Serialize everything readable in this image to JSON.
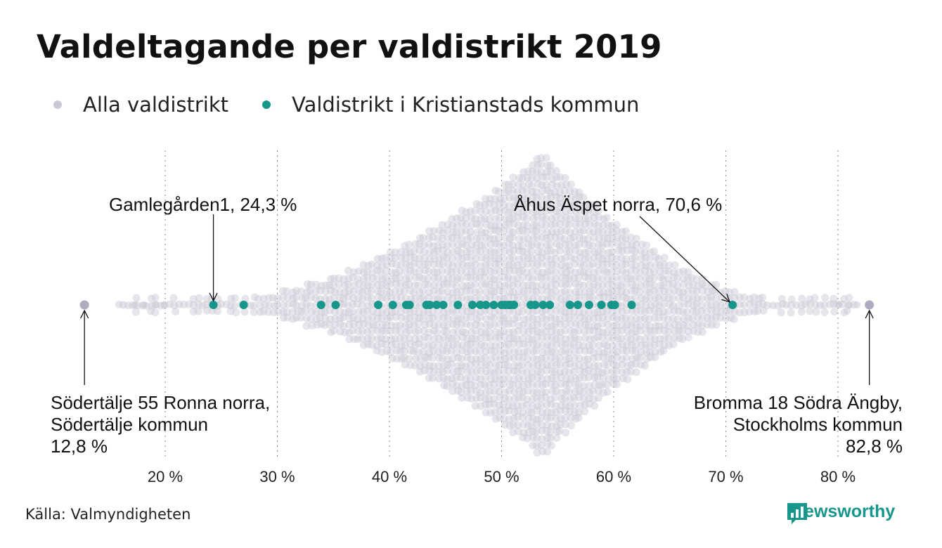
{
  "title": "Valdeltagande per valdistrikt 2019",
  "legend": {
    "all_label": "Alla valdistrikt",
    "kristianstad_label": "Valdistrikt i Kristianstads kommun"
  },
  "colors": {
    "all": "#c9c8d4",
    "kristianstad": "#17968b"
  },
  "source": "Källa: Valmyndigheten",
  "brand": "Newsworthy",
  "annotations": [
    {
      "lines": [
        "Gamlegården1, 24,3 %"
      ],
      "value": 24.3
    },
    {
      "lines": [
        "Åhus Äspet norra, 70,6 %"
      ],
      "value": 70.6
    },
    {
      "lines": [
        "Södertälje 55 Ronna norra,",
        "Södertälje kommun",
        "12,8 %"
      ],
      "value": 12.8
    },
    {
      "lines": [
        "Bromma 18 Södra Ängby,",
        "Stockholms kommun",
        "82,8 %"
      ],
      "value": 82.8
    }
  ],
  "chart_data": {
    "type": "scatter",
    "xlim": [
      10,
      90
    ],
    "x_ticks": [
      20,
      30,
      40,
      50,
      60,
      70,
      80
    ],
    "x_tick_labels": [
      "20 %",
      "30 %",
      "40 %",
      "50 %",
      "60 %",
      "70 %",
      "80 %"
    ],
    "grid": "vertical dotted",
    "legend_position": "top-left",
    "series": [
      {
        "name": "Alla valdistrikt",
        "min": 12.8,
        "max": 82.8,
        "peak": 53.7
      },
      {
        "name": "Valdistrikt i Kristianstads kommun",
        "values": [
          24.3,
          27.0,
          33.9,
          35.2,
          39.0,
          40.3,
          41.5,
          41.8,
          43.3,
          43.6,
          44.2,
          44.8,
          46.1,
          47.4,
          48.1,
          48.6,
          49.3,
          50.0,
          50.3,
          50.6,
          50.8,
          51.1,
          52.6,
          53.0,
          53.7,
          54.3,
          56.1,
          56.8,
          57.8,
          58.9,
          59.8,
          60.1,
          61.6,
          70.6
        ]
      }
    ]
  }
}
